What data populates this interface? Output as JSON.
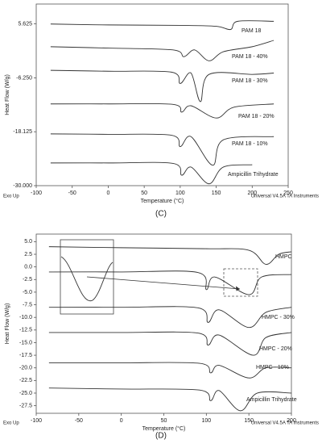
{
  "chart_data": [
    {
      "type": "line",
      "caption": "(C)",
      "xlabel": "Temperature (°C)",
      "ylabel": "Heat Flow (W/g)",
      "footer_left": "Exo Up",
      "footer_right": "Universal V4.5A TA Instruments",
      "xlim": [
        -100,
        250
      ],
      "xticks": [
        -100,
        -50,
        0,
        50,
        100,
        150,
        200,
        250
      ],
      "ylim": [
        -30,
        10
      ],
      "yticks": [
        5.625,
        {
          "value": -6.25,
          "label": "-6.250"
        },
        -18.125,
        {
          "value": -30,
          "label": "-30.000"
        }
      ],
      "series": [
        {
          "name": "PAM 18",
          "color": "#333333",
          "x": [
            -80,
            0,
            100,
            150,
            170,
            180,
            230
          ],
          "values": [
            5.6,
            5.4,
            5.3,
            5.1,
            4.4,
            6.2,
            6.2
          ]
        },
        {
          "name": "PAM 18 - 40%",
          "color": "#333333",
          "x": [
            -80,
            0,
            90,
            105,
            120,
            140,
            160,
            200,
            230
          ],
          "values": [
            0.6,
            0.3,
            -0.1,
            -1.6,
            -0.1,
            -2.5,
            -0.5,
            0.6,
            2.0
          ]
        },
        {
          "name": "PAM 18 - 30%",
          "color": "#333333",
          "x": [
            -80,
            0,
            88,
            100,
            115,
            128,
            140,
            200,
            230
          ],
          "values": [
            -4.6,
            -4.8,
            -5.0,
            -7.5,
            -5.2,
            -11.5,
            -5.5,
            -5.5,
            -5.2
          ]
        },
        {
          "name": "PAM 18 - 20%",
          "color": "#333333",
          "x": [
            -80,
            0,
            90,
            102,
            115,
            150,
            175,
            230
          ],
          "values": [
            -12.0,
            -12.0,
            -12.1,
            -13.8,
            -12.4,
            -15.1,
            -12.7,
            -12.0
          ]
        },
        {
          "name": "PAM 18 - 10%",
          "color": "#333333",
          "x": [
            -80,
            0,
            88,
            100,
            115,
            145,
            160,
            230
          ],
          "values": [
            -18.6,
            -18.7,
            -18.9,
            -21.4,
            -19.2,
            -25.5,
            -19.9,
            -19.2
          ]
        },
        {
          "name": "Ampicillin Trihydrate",
          "color": "#333333",
          "x": [
            -80,
            0,
            90,
            102,
            115,
            140,
            160,
            200
          ],
          "values": [
            -25.0,
            -25.0,
            -25.1,
            -27.7,
            -25.9,
            -29.6,
            -25.9,
            -25.4
          ]
        }
      ]
    },
    {
      "type": "line",
      "caption": "(D)",
      "xlabel": "Temperature (°C)",
      "ylabel": "Heat Flow (W/g)",
      "footer_left": "Exo Up",
      "footer_right": "Universal V4.5A TA Instruments",
      "xlim": [
        -100,
        200
      ],
      "xticks": [
        -100,
        -50,
        0,
        50,
        100,
        150,
        200
      ],
      "ylim": [
        -29,
        6.5
      ],
      "yticks": [
        {
          "value": 5,
          "label": "5.0"
        },
        2.5,
        {
          "value": 0,
          "label": "0.0"
        },
        -2.5,
        {
          "value": -5,
          "label": "-5.0"
        },
        -7.5,
        {
          "value": -10,
          "label": "-10.0"
        },
        -12.5,
        {
          "value": -15,
          "label": "-15.0"
        },
        -17.5,
        {
          "value": -20,
          "label": "-20.0"
        },
        -22.5,
        {
          "value": -25,
          "label": "-25.0"
        },
        -27.5
      ],
      "series": [
        {
          "name": "HMPC",
          "color": "#333333",
          "x": [
            -85,
            0,
            100,
            150,
            170,
            185,
            200
          ],
          "values": [
            4.0,
            3.8,
            3.6,
            3.3,
            0.5,
            2.5,
            3.0
          ]
        },
        {
          "color": "#333333",
          "x": [
            -85,
            0,
            90,
            100,
            110,
            150,
            165,
            200
          ],
          "values": [
            -1.0,
            -1.0,
            -1.1,
            -4.5,
            -2.0,
            -5.5,
            -2.0,
            -1.5
          ]
        },
        {
          "name": "HMPC - 30%",
          "color": "#333333",
          "x": [
            -85,
            0,
            90,
            102,
            115,
            150,
            170,
            200
          ],
          "values": [
            -8.0,
            -8.0,
            -8.1,
            -11.0,
            -8.5,
            -12.0,
            -9.0,
            -8.0
          ]
        },
        {
          "name": "HMPC - 20%",
          "color": "#333333",
          "x": [
            -85,
            0,
            90,
            102,
            115,
            155,
            170,
            200
          ],
          "values": [
            -13.0,
            -13.0,
            -13.1,
            -15.5,
            -13.5,
            -17.5,
            -14.0,
            -13.0
          ]
        },
        {
          "name": "HMPC - 10%",
          "color": "#333333",
          "x": [
            -85,
            0,
            92,
            105,
            115,
            150,
            170,
            200
          ],
          "values": [
            -19.0,
            -19.0,
            -19.1,
            -21.0,
            -19.5,
            -22.0,
            -20.0,
            -20.0
          ]
        },
        {
          "name": "Ampicillin Trihydrate",
          "color": "#333333",
          "x": [
            -85,
            0,
            92,
            105,
            115,
            140,
            160,
            200
          ],
          "values": [
            -24.0,
            -24.2,
            -24.4,
            -26.5,
            -24.5,
            -28.5,
            -25.0,
            -25.0
          ]
        }
      ]
    }
  ]
}
